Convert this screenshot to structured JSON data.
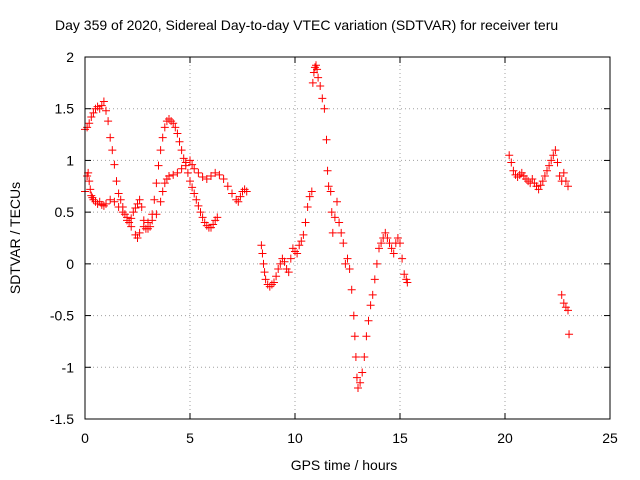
{
  "chart_data": {
    "type": "scatter",
    "title": "Day 359 of 2020, Sidereal Day-to-day VTEC variation (SDTVAR) for receiver teru",
    "xlabel": "GPS time / hours",
    "ylabel": "SDTVAR / TECUs",
    "xlim": [
      0,
      25
    ],
    "ylim": [
      -1.5,
      2
    ],
    "xticks": [
      0,
      5,
      10,
      15,
      20,
      25
    ],
    "yticks": [
      -1.5,
      -1,
      -0.5,
      0,
      0.5,
      1,
      1.5,
      2
    ],
    "grid": true,
    "marker": "plus",
    "color": "#ff0000",
    "series": [
      {
        "values": [
          [
            0.0,
            1.3
          ],
          [
            0.1,
            1.32
          ],
          [
            0.2,
            1.36
          ],
          [
            0.3,
            1.42
          ],
          [
            0.4,
            1.46
          ],
          [
            0.5,
            1.5
          ],
          [
            0.6,
            1.52
          ],
          [
            0.7,
            1.5
          ],
          [
            0.8,
            1.53
          ],
          [
            0.9,
            1.57
          ],
          [
            1.0,
            1.48
          ],
          [
            1.1,
            1.38
          ],
          [
            1.2,
            1.22
          ],
          [
            1.3,
            1.1
          ],
          [
            1.4,
            0.96
          ],
          [
            1.5,
            0.8
          ],
          [
            1.6,
            0.68
          ],
          [
            1.7,
            0.62
          ],
          [
            1.8,
            0.55
          ],
          [
            1.9,
            0.48
          ],
          [
            2.0,
            0.42
          ],
          [
            2.1,
            0.4
          ],
          [
            2.2,
            0.44
          ],
          [
            2.3,
            0.5
          ],
          [
            2.4,
            0.54
          ],
          [
            2.5,
            0.58
          ],
          [
            2.6,
            0.62
          ],
          [
            2.7,
            0.55
          ],
          [
            2.8,
            0.42
          ],
          [
            2.9,
            0.34
          ],
          [
            3.0,
            0.34
          ],
          [
            3.1,
            0.36
          ],
          [
            3.2,
            0.48
          ],
          [
            3.3,
            0.62
          ],
          [
            3.4,
            0.78
          ],
          [
            3.5,
            0.95
          ],
          [
            3.6,
            1.1
          ],
          [
            3.7,
            1.22
          ],
          [
            3.8,
            1.32
          ],
          [
            3.9,
            1.38
          ],
          [
            4.0,
            1.4
          ],
          [
            4.1,
            1.38
          ],
          [
            4.2,
            1.36
          ],
          [
            4.3,
            1.32
          ],
          [
            4.4,
            1.26
          ],
          [
            4.5,
            1.18
          ],
          [
            4.6,
            1.1
          ],
          [
            4.7,
            1.02
          ],
          [
            4.8,
            0.95
          ],
          [
            4.9,
            0.88
          ],
          [
            5.0,
            0.8
          ],
          [
            5.1,
            0.74
          ],
          [
            5.2,
            0.68
          ],
          [
            5.3,
            0.62
          ],
          [
            5.4,
            0.56
          ],
          [
            5.5,
            0.5
          ],
          [
            5.6,
            0.45
          ],
          [
            5.7,
            0.4
          ],
          [
            5.8,
            0.37
          ],
          [
            5.9,
            0.35
          ],
          [
            6.0,
            0.35
          ],
          [
            6.1,
            0.38
          ],
          [
            6.2,
            0.42
          ],
          [
            6.3,
            0.45
          ]
        ]
      },
      {
        "values": [
          [
            0.0,
            0.7
          ],
          [
            0.1,
            0.85
          ],
          [
            0.15,
            0.88
          ],
          [
            0.2,
            0.8
          ],
          [
            0.25,
            0.72
          ],
          [
            0.3,
            0.66
          ],
          [
            0.35,
            0.64
          ],
          [
            0.4,
            0.62
          ],
          [
            0.5,
            0.6
          ],
          [
            0.6,
            0.58
          ],
          [
            0.7,
            0.6
          ],
          [
            0.8,
            0.57
          ],
          [
            0.9,
            0.56
          ],
          [
            1.0,
            0.58
          ],
          [
            1.2,
            0.62
          ],
          [
            1.4,
            0.6
          ],
          [
            1.6,
            0.55
          ],
          [
            1.8,
            0.5
          ],
          [
            2.0,
            0.45
          ],
          [
            2.2,
            0.36
          ],
          [
            2.4,
            0.28
          ],
          [
            2.5,
            0.25
          ],
          [
            2.6,
            0.3
          ],
          [
            2.8,
            0.36
          ],
          [
            3.0,
            0.4
          ],
          [
            3.2,
            0.42
          ],
          [
            3.4,
            0.48
          ],
          [
            3.6,
            0.6
          ],
          [
            3.7,
            0.7
          ],
          [
            3.8,
            0.78
          ],
          [
            3.9,
            0.82
          ],
          [
            4.0,
            0.85
          ],
          [
            4.2,
            0.86
          ],
          [
            4.4,
            0.88
          ],
          [
            4.6,
            0.92
          ],
          [
            4.8,
            0.98
          ],
          [
            5.0,
            1.0
          ],
          [
            5.1,
            0.96
          ],
          [
            5.2,
            0.92
          ],
          [
            5.4,
            0.88
          ],
          [
            5.6,
            0.84
          ],
          [
            5.8,
            0.82
          ],
          [
            6.0,
            0.85
          ],
          [
            6.2,
            0.88
          ],
          [
            6.4,
            0.86
          ],
          [
            6.6,
            0.82
          ],
          [
            6.8,
            0.75
          ],
          [
            7.0,
            0.68
          ],
          [
            7.2,
            0.62
          ],
          [
            7.3,
            0.6
          ],
          [
            7.4,
            0.65
          ],
          [
            7.5,
            0.7
          ],
          [
            7.6,
            0.72
          ],
          [
            7.7,
            0.7
          ]
        ]
      },
      {
        "values": [
          [
            8.4,
            0.18
          ],
          [
            8.45,
            0.1
          ],
          [
            8.5,
            0.0
          ],
          [
            8.55,
            -0.08
          ],
          [
            8.6,
            -0.15
          ],
          [
            8.7,
            -0.2
          ],
          [
            8.8,
            -0.22
          ],
          [
            8.9,
            -0.2
          ],
          [
            9.0,
            -0.18
          ],
          [
            9.1,
            -0.12
          ],
          [
            9.2,
            -0.05
          ],
          [
            9.3,
            0.0
          ],
          [
            9.4,
            0.05
          ],
          [
            9.5,
            0.02
          ],
          [
            9.6,
            -0.05
          ],
          [
            9.7,
            -0.08
          ],
          [
            9.8,
            0.05
          ],
          [
            9.9,
            0.15
          ],
          [
            10.0,
            0.12
          ],
          [
            10.1,
            0.1
          ],
          [
            10.2,
            0.18
          ],
          [
            10.3,
            0.22
          ],
          [
            10.4,
            0.28
          ],
          [
            10.5,
            0.4
          ],
          [
            10.6,
            0.55
          ],
          [
            10.7,
            0.65
          ],
          [
            10.8,
            0.7
          ],
          [
            10.85,
            1.75
          ],
          [
            10.9,
            1.85
          ],
          [
            10.95,
            1.9
          ],
          [
            11.0,
            1.92
          ],
          [
            11.05,
            1.88
          ],
          [
            11.1,
            1.8
          ],
          [
            11.2,
            1.72
          ],
          [
            11.3,
            1.6
          ],
          [
            11.4,
            1.5
          ],
          [
            11.5,
            1.2
          ],
          [
            11.55,
            0.9
          ],
          [
            11.6,
            0.75
          ],
          [
            11.7,
            0.7
          ],
          [
            11.75,
            0.5
          ],
          [
            11.8,
            0.3
          ],
          [
            11.9,
            0.45
          ],
          [
            12.0,
            0.6
          ],
          [
            12.1,
            0.4
          ],
          [
            12.2,
            0.3
          ],
          [
            12.3,
            0.2
          ],
          [
            12.4,
            0.0
          ],
          [
            12.5,
            0.05
          ],
          [
            12.6,
            -0.05
          ],
          [
            12.7,
            -0.25
          ],
          [
            12.8,
            -0.5
          ],
          [
            12.85,
            -0.7
          ],
          [
            12.9,
            -0.9
          ],
          [
            12.95,
            -1.1
          ],
          [
            13.0,
            -1.2
          ],
          [
            13.1,
            -1.15
          ],
          [
            13.2,
            -1.05
          ],
          [
            13.3,
            -0.9
          ],
          [
            13.4,
            -0.7
          ],
          [
            13.5,
            -0.55
          ],
          [
            13.6,
            -0.4
          ],
          [
            13.7,
            -0.3
          ],
          [
            13.8,
            -0.15
          ],
          [
            13.9,
            0.0
          ],
          [
            14.0,
            0.15
          ],
          [
            14.1,
            0.2
          ],
          [
            14.2,
            0.25
          ],
          [
            14.3,
            0.3
          ],
          [
            14.4,
            0.25
          ],
          [
            14.5,
            0.2
          ],
          [
            14.6,
            0.15
          ],
          [
            14.7,
            0.1
          ],
          [
            14.8,
            0.2
          ],
          [
            14.9,
            0.25
          ],
          [
            15.0,
            0.2
          ],
          [
            15.1,
            0.05
          ],
          [
            15.2,
            -0.1
          ],
          [
            15.3,
            -0.15
          ],
          [
            15.35,
            -0.18
          ]
        ]
      },
      {
        "values": [
          [
            20.2,
            1.05
          ],
          [
            20.3,
            0.98
          ],
          [
            20.4,
            0.9
          ],
          [
            20.5,
            0.86
          ],
          [
            20.6,
            0.84
          ],
          [
            20.7,
            0.86
          ],
          [
            20.8,
            0.88
          ],
          [
            20.9,
            0.85
          ],
          [
            21.0,
            0.82
          ],
          [
            21.1,
            0.8
          ],
          [
            21.2,
            0.78
          ],
          [
            21.3,
            0.82
          ],
          [
            21.4,
            0.78
          ],
          [
            21.5,
            0.75
          ],
          [
            21.6,
            0.72
          ],
          [
            21.7,
            0.76
          ],
          [
            21.8,
            0.8
          ],
          [
            21.9,
            0.85
          ],
          [
            22.0,
            0.9
          ],
          [
            22.1,
            0.95
          ],
          [
            22.2,
            1.0
          ],
          [
            22.3,
            1.05
          ],
          [
            22.4,
            1.1
          ],
          [
            22.5,
            0.98
          ],
          [
            22.6,
            0.85
          ],
          [
            22.7,
            0.8
          ],
          [
            22.8,
            0.88
          ],
          [
            22.9,
            0.8
          ],
          [
            23.0,
            0.75
          ],
          [
            22.7,
            -0.3
          ],
          [
            22.8,
            -0.38
          ],
          [
            22.9,
            -0.42
          ],
          [
            23.0,
            -0.45
          ],
          [
            23.05,
            -0.68
          ]
        ]
      }
    ]
  }
}
